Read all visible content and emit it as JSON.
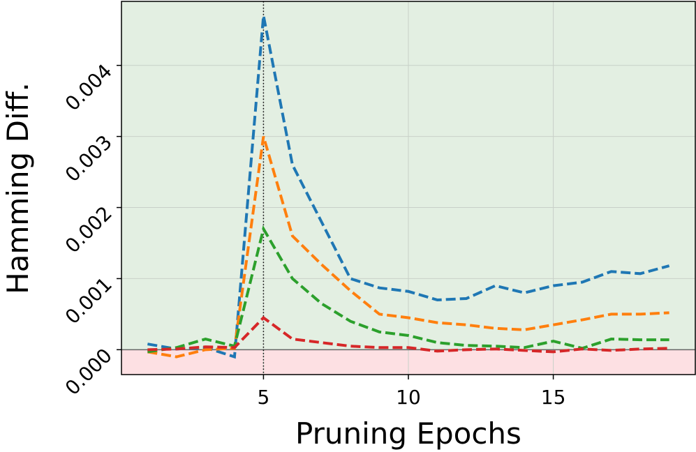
{
  "chart_data": {
    "type": "line",
    "xlabel": "Pruning Epochs",
    "ylabel": "Hamming Diff.",
    "x": [
      1,
      2,
      3,
      4,
      5,
      6,
      7,
      8,
      9,
      10,
      11,
      12,
      13,
      14,
      15,
      16,
      17,
      18,
      19
    ],
    "series": [
      {
        "color": "#1f77b4",
        "values": [
          8e-05,
          1e-05,
          3e-05,
          -0.0001,
          0.0047,
          0.0026,
          0.0018,
          0.001,
          0.00087,
          0.00082,
          0.0007,
          0.00072,
          0.0009,
          0.0008,
          0.0009,
          0.00095,
          0.0011,
          0.00107,
          0.00118
        ]
      },
      {
        "color": "#ff7f0e",
        "values": [
          -3e-05,
          -0.0001,
          0,
          2e-05,
          0.003,
          0.0016,
          0.0012,
          0.00083,
          0.0005,
          0.00045,
          0.00038,
          0.00035,
          0.0003,
          0.00028,
          0.00035,
          0.00042,
          0.0005,
          0.0005,
          0.00052
        ]
      },
      {
        "color": "#2ca02c",
        "values": [
          -3e-05,
          3e-05,
          0.00015,
          5e-05,
          0.0017,
          0.001,
          0.00065,
          0.0004,
          0.00025,
          0.0002,
          0.0001,
          6e-05,
          5e-05,
          3e-05,
          0.00012,
          2e-05,
          0.00015,
          0.00014,
          0.00014
        ]
      },
      {
        "color": "#d62728",
        "values": [
          0,
          1e-05,
          4e-05,
          3e-05,
          0.00045,
          0.00015,
          0.0001,
          5e-05,
          3e-05,
          3e-05,
          -2e-05,
          0,
          1e-05,
          -1e-05,
          -3e-05,
          1e-05,
          -1e-05,
          1e-05,
          2e-05
        ]
      }
    ],
    "xlim": [
      0.1,
      19.9
    ],
    "xticks": [
      5,
      10,
      15
    ],
    "ylim": [
      -0.00035,
      0.0049
    ],
    "yticks": [
      {
        "value": 0,
        "label": "0.000"
      },
      {
        "value": 0.001,
        "label": "0.001"
      },
      {
        "value": 0.002,
        "label": "0.002"
      },
      {
        "value": 0.003,
        "label": "0.003"
      },
      {
        "value": 0.004,
        "label": "0.004"
      }
    ],
    "vline": 5,
    "hline": 0,
    "grid": true,
    "above_color": "#e3efe2",
    "below_color": "#fde0e3"
  }
}
